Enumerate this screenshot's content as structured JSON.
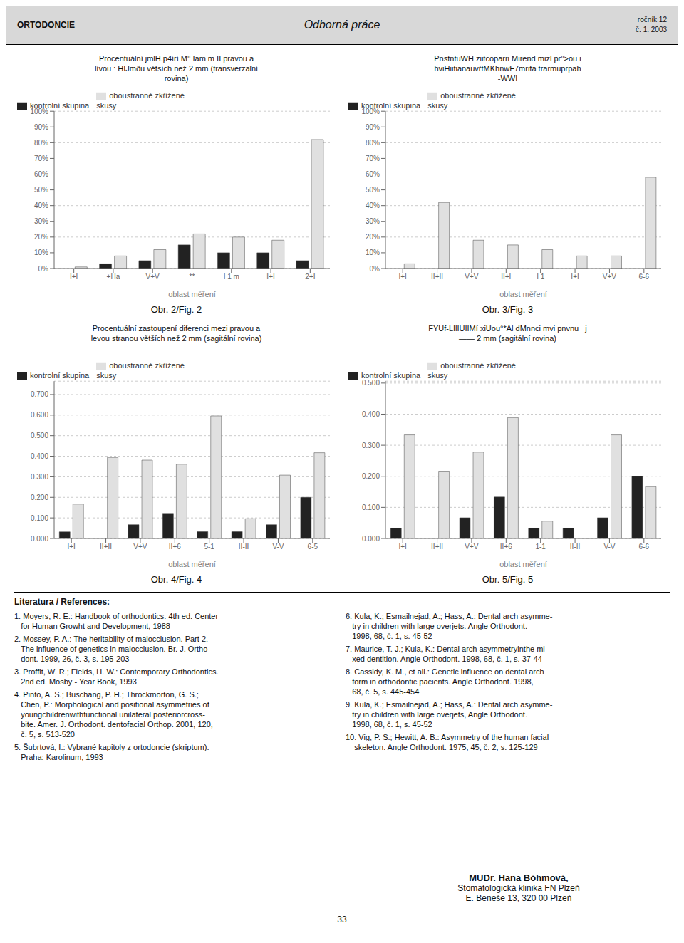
{
  "chart_data": [
    {
      "type": "bar",
      "title": "Procentuální jmlH.p4írí M° Iam m II pravou a\nlívou : HIJmðu větsích než 2 mm (transverzalní\nrovina)",
      "categories": [
        "I+I",
        "+Ha",
        "V+V",
        "**",
        "I 1 m",
        "I+I",
        "2+I"
      ],
      "series": [
        {
          "name": "kontrolní skupina",
          "color": "#222222",
          "values": [
            0,
            3,
            5,
            15,
            10,
            10,
            5
          ]
        },
        {
          "name": "oboustranně zkřížené\nskusy",
          "color": "#e0e0e0",
          "values": [
            1,
            8,
            12,
            22,
            20,
            18,
            82
          ]
        }
      ],
      "xlabel": "oblast měření",
      "ylim": [
        0,
        100
      ],
      "yticks": [
        {
          "value": 0,
          "label": "0%"
        },
        {
          "value": 10,
          "label": "10%"
        },
        {
          "value": 20,
          "label": "20%"
        },
        {
          "value": 30,
          "label": "30%"
        },
        {
          "value": 40,
          "label": "40%"
        },
        {
          "value": 50,
          "label": "50%"
        },
        {
          "value": 60,
          "label": "60%"
        },
        {
          "value": 70,
          "label": "70%"
        },
        {
          "value": 80,
          "label": "80%"
        },
        {
          "value": 90,
          "label": "90%"
        },
        {
          "value": 100,
          "label": "100%"
        }
      ],
      "grid": true,
      "legend": "upper left",
      "annotations": [
        "Obr. 2/Fig. 2"
      ]
    },
    {
      "type": "bar",
      "title": "PnstntuWH ziitcoparri Mirend mizl pr°>ou i\nhviHiitianauvřtMKhnwF7mrifa trarmuprpah\n-WWI",
      "categories": [
        "I+I",
        "II+II",
        "V+V",
        "II+I",
        "I 1",
        "I+I",
        "V+V",
        "6-6"
      ],
      "series": [
        {
          "name": "kontrolní skupina",
          "color": "#222222",
          "values": [
            0,
            0,
            0,
            0,
            0,
            0,
            0,
            0
          ]
        },
        {
          "name": "oboustranně zkřížené\nskusy",
          "color": "#e0e0e0",
          "values": [
            3,
            42,
            18,
            15,
            12,
            8,
            8,
            58
          ]
        }
      ],
      "xlabel": "oblast měření",
      "ylim": [
        0,
        100
      ],
      "yticks": [
        {
          "value": 0,
          "label": "0%"
        },
        {
          "value": 10,
          "label": "10%"
        },
        {
          "value": 20,
          "label": "20%"
        },
        {
          "value": 30,
          "label": "30%"
        },
        {
          "value": 40,
          "label": "40%"
        },
        {
          "value": 50,
          "label": "50%"
        },
        {
          "value": 60,
          "label": "60%"
        },
        {
          "value": 70,
          "label": "70%"
        },
        {
          "value": 80,
          "label": "80%"
        },
        {
          "value": 90,
          "label": "90%"
        },
        {
          "value": 100,
          "label": "100%"
        }
      ],
      "grid": true,
      "legend": "upper left",
      "annotations": [
        "Obr. 3/Fig. 3"
      ]
    },
    {
      "type": "bar",
      "title": "Procentuální zastoupení diferenci mezi pravou a\nlevou stranou větších než 2 mm (sagitální rovina)",
      "categories": [
        "I+I",
        "II+II",
        "V+V",
        "II+6",
        "5-1",
        "II-II",
        "V-V",
        "6-5"
      ],
      "series": [
        {
          "name": "kontrolní skupina",
          "color": "#222222",
          "values": [
            0.032,
            0.0,
            0.067,
            0.122,
            0.033,
            0.033,
            0.067,
            0.2
          ]
        },
        {
          "name": "oboustranně zkřížené\nskusy",
          "color": "#e0e0e0",
          "values": [
            0.167,
            0.394,
            0.381,
            0.361,
            0.596,
            0.096,
            0.308,
            0.417
          ]
        }
      ],
      "xlabel": "oblast měření",
      "ylim": [
        0,
        0.765
      ],
      "yticks": [
        {
          "value": 0,
          "label": "0.000"
        },
        {
          "value": 0.1,
          "label": "0.100"
        },
        {
          "value": 0.2,
          "label": "0.200"
        },
        {
          "value": 0.3,
          "label": "0.300"
        },
        {
          "value": 0.4,
          "label": "0.400"
        },
        {
          "value": 0.5,
          "label": "0.500"
        },
        {
          "value": 0.6,
          "label": "0.600"
        },
        {
          "value": 0.7,
          "label": "0.700"
        }
      ],
      "grid": true,
      "legend": "upper left",
      "annotations": [
        "Obr. 4/Fig. 4"
      ]
    },
    {
      "type": "bar",
      "title": "FYUf-LIlIUIIMí xiUou°*Al dMnnci mvi pnvnu   j\n—— 2 mm (sagitální rovina)",
      "categories": [
        "I+I",
        "II+II",
        "V+V",
        "II+6",
        "1-1",
        "II-II",
        "V-V",
        "6-6"
      ],
      "series": [
        {
          "name": "kontrolní skupina",
          "color": "#222222",
          "values": [
            0.0333,
            0.0,
            0.0667,
            0.1333,
            0.0333,
            0.0333,
            0.0667,
            0.2
          ]
        },
        {
          "name": "oboustranně zkřížené\nskusy",
          "color": "#e0e0e0",
          "values": [
            0.3333,
            0.2143,
            0.2778,
            0.3889,
            0.0556,
            0.0,
            0.3333,
            0.1667
          ]
        }
      ],
      "xlabel": "oblast měření",
      "ylim": [
        0,
        0.506125
      ],
      "yticks": [
        {
          "value": 0,
          "label": "0.000"
        },
        {
          "value": 0.1,
          "label": "0.100"
        },
        {
          "value": 0.2,
          "label": "0.200"
        },
        {
          "value": 0.3,
          "label": "0.300"
        },
        {
          "value": 0.4,
          "label": "0.400"
        },
        {
          "value": 0.5,
          "label": "0.500"
        }
      ],
      "grid": true,
      "legend": "upper left",
      "annotations": [
        "Obr. 5/Fig. 5"
      ]
    }
  ],
  "annotations": {
    "header": [
      "ORTODONCIE",
      "Odborná práce",
      "ročník 12",
      "č. 1. 2003"
    ],
    "references_title": "Literatura / References:",
    "references_left": [
      [
        "1. Moyers, R. E.: Handbook of orthodontics. 4th ed. Center",
        "   for Human Growht and Development, 1988"
      ],
      [
        "2. Mossey, P. A.: The heritability of malocclusion. Part 2.",
        "   The influence of genetics in malocclusion. Br. J. Ortho-",
        "   dont. 1999, 26, č. 3, s. 195-203"
      ],
      [
        "3. Proffit, W. R.; Fields, H. W.: Contemporary Orthodontics.",
        "   2nd ed. Mosby - Year Book, 1993"
      ],
      [
        "4. Pinto, A. S.; Buschang, P. H.; Throckmorton, G. S.;",
        "   Chen, P.: Morphological and positional asymmetries of",
        "   youngchildrenwithfunctional unilateral posteriorcross-",
        "   bite. Amer. J. Orthodont. dentofacial Orthop. 2001, 120,",
        "   č. 5, s. 513-520"
      ],
      [
        "5. Šubrtová, I.: Vybrané kapitoly z ortodoncie (skriptum).",
        "   Praha: Karolinum, 1993"
      ]
    ],
    "references_right": [
      [
        "6. Kula, K.; Esmailnejad, A.; Hass, A.: Dental arch asymme-",
        "   try in children with large overjets. Angle Orthodont.",
        "   1998, 68, č. 1, s. 45-52"
      ],
      [
        "7. Maurice, T. J.; Kula, K.: Dental arch asymmetryinthe mi-",
        "   xed dentition. Angle Orthodont. 1998, 68, č. 1, s. 37-44"
      ],
      [
        "8. Cassidy, K. M., et all.: Genetic influence on dental arch",
        "   form in orthodontic pacients. Angle Orthodont. 1998,",
        "   68, č. 5, s. 445-454"
      ],
      [
        "9. Kula, K.; Esmailnejad, A.; Hass, A.: Dental arch asymme-",
        "   try in children with large overjets, Angle Orthodont.",
        "   1998, 68, č. 1, s. 45-52"
      ],
      [
        "10. Vig, P. S.; Hewitt, A. B.: Asymmetry of the human facial",
        "    skeleton. Angle Orthodont. 1975, 45, č. 2, s. 125-129"
      ]
    ],
    "footer": [
      "MUDr. Hana Bóhmová,",
      "Stomatologická klinika FN Plzeň",
      "E. Beneše 13, 320 00 Plzeň"
    ],
    "page_number": "33"
  }
}
